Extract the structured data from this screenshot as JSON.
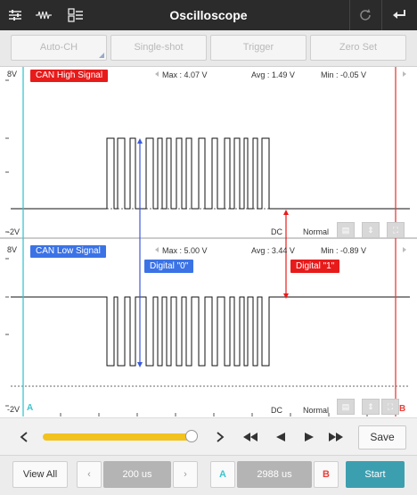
{
  "app": {
    "title": "Oscilloscope"
  },
  "topbar": {
    "left_icons": [
      "sliders-icon",
      "waveform-icon",
      "channel-list-icon"
    ],
    "right_icons": [
      "refresh-icon",
      "back-icon"
    ]
  },
  "toolbar": {
    "auto_ch": "Auto-CH",
    "single_shot": "Single-shot",
    "trigger": "Trigger",
    "zero_set": "Zero Set"
  },
  "channel1": {
    "name": "CAN High Signal",
    "top_label": "8V",
    "bottom_label": "-2V",
    "max": "Max : 4.07 V",
    "avg": "Avg : 1.49 V",
    "min": "Min : -0.05 V",
    "coupling": "DC",
    "mode": "Normal"
  },
  "channel2": {
    "name": "CAN Low Signal",
    "top_label": "8V",
    "bottom_label": "-2V",
    "max": "Max : 5.00 V",
    "avg": "Avg : 3.44 V",
    "min": "Min : -0.89 V",
    "coupling": "DC",
    "mode": "Normal"
  },
  "annotations": {
    "digital0": "Digital \"0\"",
    "digital1": "Digital \"1\""
  },
  "cursors": {
    "a": "A",
    "b": "B"
  },
  "playback": {
    "position": 0.97,
    "save": "Save"
  },
  "bottom": {
    "view_all": "View All",
    "timebase": "200 us",
    "a_label": "A",
    "delta": "2988 us",
    "b_label": "B",
    "start": "Start"
  },
  "colors": {
    "can_high": "#e81b1b",
    "can_low": "#3b73e6",
    "cursor_a": "#39c5d0",
    "cursor_b": "#e8403a",
    "slider": "#f2c21f",
    "start": "#3c9fb0"
  }
}
